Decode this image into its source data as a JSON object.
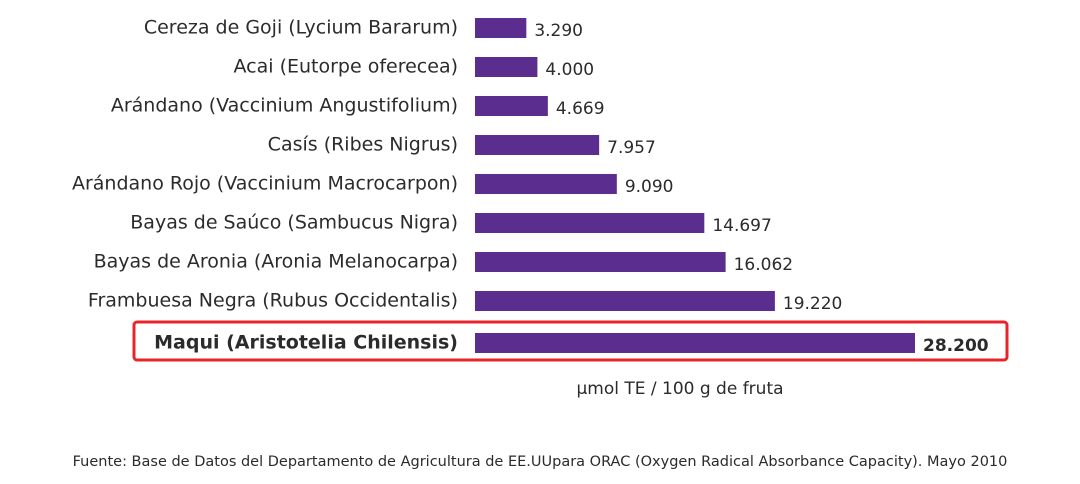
{
  "chart_data": {
    "type": "bar",
    "orientation": "horizontal",
    "categories": [
      "Cereza de Goji (Lycium Bararum)",
      "Acai (Eutorpe oferecea)",
      "Arándano (Vaccinium Angustifolium)",
      "Casís (Ribes Nigrus)",
      "Arándano Rojo (Vaccinium Macrocarpon)",
      "Bayas de Saúco (Sambucus Nigra)",
      "Bayas de Aronia (Aronia Melanocarpa)",
      "Frambuesa Negra (Rubus Occidentalis)",
      "Maqui (Aristotelia Chilensis)"
    ],
    "values": [
      3290,
      4000,
      4669,
      7957,
      9090,
      14697,
      16062,
      19220,
      28200
    ],
    "value_labels": [
      "3.290",
      "4.000",
      "4.669",
      "7.957",
      "9.090",
      "14.697",
      "16.062",
      "19.220",
      "28.200"
    ],
    "color": "#5b2d8e",
    "xlabel": "µmol TE / 100 g de fruta",
    "source": "Fuente: Base de Datos del Departamento de Agricultura de EE.UUpara ORAC (Oxygen Radical Absorbance Capacity). Mayo 2010"
  }
}
